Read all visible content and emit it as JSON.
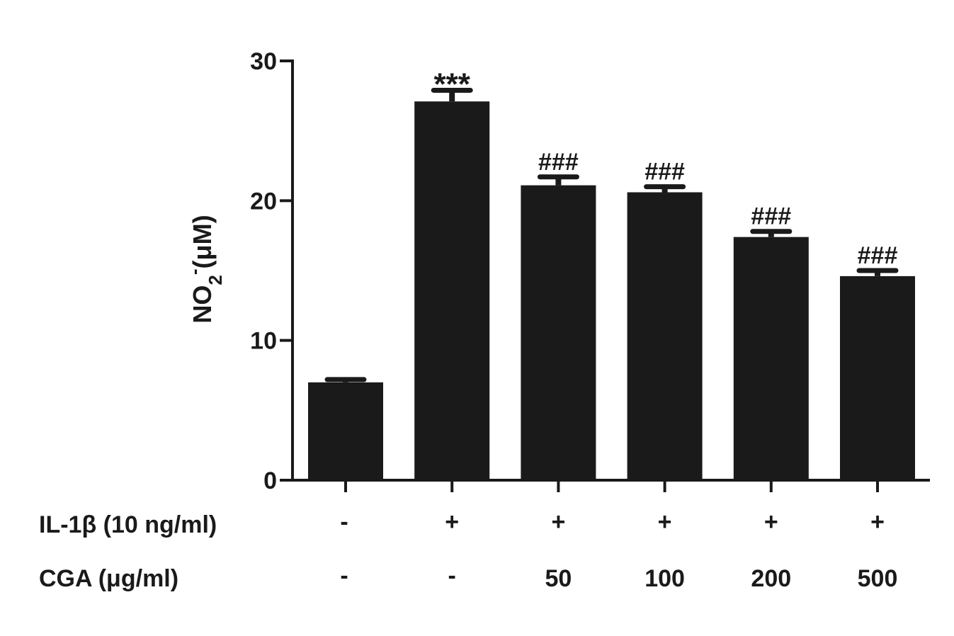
{
  "chart_data": {
    "type": "bar",
    "title": "",
    "xlabel": "",
    "ylabel_parts": {
      "base": "NO",
      "sub": "2",
      "sup": "-",
      "unit": "(μM)"
    },
    "ylim": [
      0,
      30
    ],
    "yticks": [
      "0",
      "10",
      "20",
      "30"
    ],
    "bar_color": "#1a1a1a",
    "values": [
      7.0,
      27.1,
      21.1,
      20.6,
      17.4,
      14.6
    ],
    "errors": [
      0.2,
      0.8,
      0.6,
      0.4,
      0.4,
      0.4
    ],
    "annotations": [
      "",
      "***",
      "###",
      "###",
      "###",
      "###"
    ],
    "rows": [
      {
        "label": "IL-1β (10 ng/ml)",
        "values": [
          "-",
          "+",
          "+",
          "+",
          "+",
          "+"
        ]
      },
      {
        "label": "CGA (μg/ml)",
        "values": [
          "-",
          "-",
          "50",
          "100",
          "200",
          "500"
        ]
      }
    ]
  }
}
